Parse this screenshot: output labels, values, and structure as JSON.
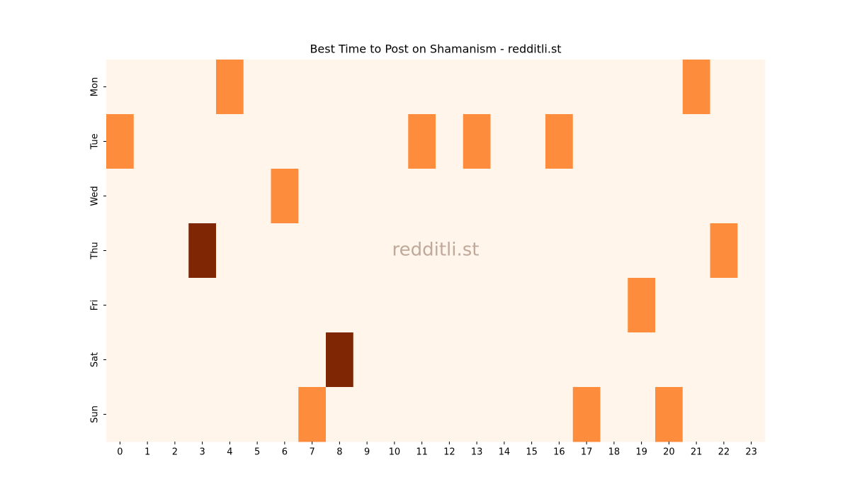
{
  "chart_data": {
    "type": "heatmap",
    "title": "Best Time to Post on Shamanism - redditli.st",
    "watermark": "redditli.st",
    "x_categories": [
      0,
      1,
      2,
      3,
      4,
      5,
      6,
      7,
      8,
      9,
      10,
      11,
      12,
      13,
      14,
      15,
      16,
      17,
      18,
      19,
      20,
      21,
      22,
      23
    ],
    "y_categories": [
      "Mon",
      "Tue",
      "Wed",
      "Thu",
      "Fri",
      "Sat",
      "Sun"
    ],
    "values": [
      [
        0,
        0,
        0,
        0,
        1,
        0,
        0,
        0,
        0,
        0,
        0,
        0,
        0,
        0,
        0,
        0,
        0,
        0,
        0,
        0,
        0,
        1,
        0,
        0
      ],
      [
        1,
        0,
        0,
        0,
        0,
        0,
        0,
        0,
        0,
        0,
        0,
        1,
        0,
        1,
        0,
        0,
        1,
        0,
        0,
        0,
        0,
        0,
        0,
        0
      ],
      [
        0,
        0,
        0,
        0,
        0,
        0,
        1,
        0,
        0,
        0,
        0,
        0,
        0,
        0,
        0,
        0,
        0,
        0,
        0,
        0,
        0,
        0,
        0,
        0
      ],
      [
        0,
        0,
        0,
        2,
        0,
        0,
        0,
        0,
        0,
        0,
        0,
        0,
        0,
        0,
        0,
        0,
        0,
        0,
        0,
        0,
        0,
        0,
        1,
        0
      ],
      [
        0,
        0,
        0,
        0,
        0,
        0,
        0,
        0,
        0,
        0,
        0,
        0,
        0,
        0,
        0,
        0,
        0,
        0,
        0,
        1,
        0,
        0,
        0,
        0
      ],
      [
        0,
        0,
        0,
        0,
        0,
        0,
        0,
        0,
        2,
        0,
        0,
        0,
        0,
        0,
        0,
        0,
        0,
        0,
        0,
        0,
        0,
        0,
        0,
        0
      ],
      [
        0,
        0,
        0,
        0,
        0,
        0,
        0,
        1,
        0,
        0,
        0,
        0,
        0,
        0,
        0,
        0,
        0,
        1,
        0,
        0,
        1,
        0,
        0,
        0
      ]
    ],
    "color_scale": {
      "min": 0,
      "max": 2,
      "colors": [
        "#fff5eb",
        "#fd8d3c",
        "#7f2704"
      ]
    }
  }
}
